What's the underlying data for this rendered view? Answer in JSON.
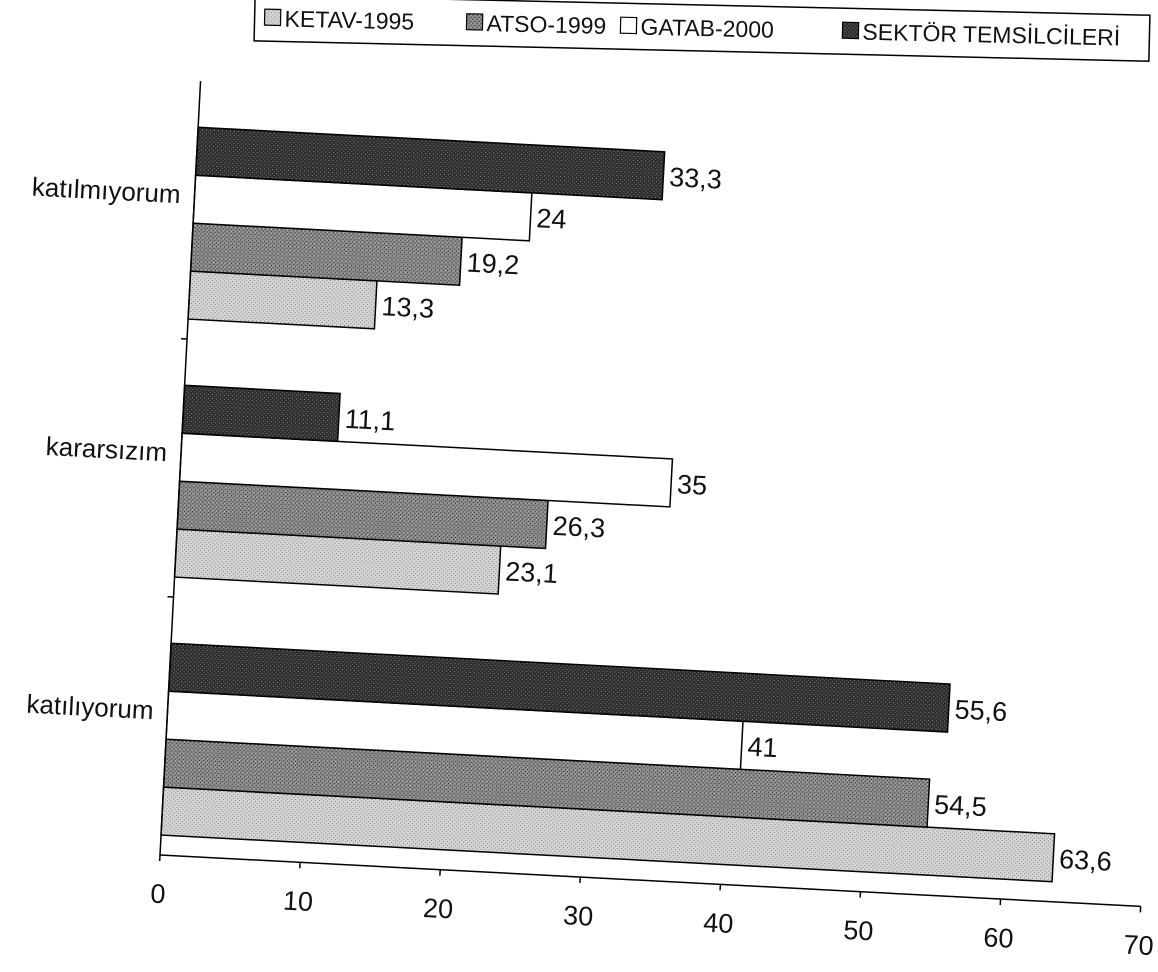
{
  "chart_data": {
    "type": "bar",
    "orientation": "horizontal",
    "title": "",
    "xlabel": "",
    "ylabel": "",
    "categories": [
      "katılmıyorum",
      "kararsızım",
      "katılıyorum"
    ],
    "series": [
      {
        "name": "KETAV-1995",
        "pattern": "light-hatch",
        "values": [
          13.3,
          23.1,
          63.6
        ],
        "labels": [
          "13,3",
          "23,1",
          "63,6"
        ]
      },
      {
        "name": "ATSO-1999",
        "pattern": "medium-hatch",
        "values": [
          19.2,
          26.3,
          54.5
        ],
        "labels": [
          "19,2",
          "26,3",
          "54,5"
        ]
      },
      {
        "name": "GATAB-2000",
        "pattern": "white",
        "values": [
          24,
          35,
          41
        ],
        "labels": [
          "24",
          "35",
          "41"
        ]
      },
      {
        "name": "SEKTÖR TEMSİLCİLERİ",
        "pattern": "dark-hatch",
        "values": [
          33.3,
          11.1,
          55.6
        ],
        "labels": [
          "33,3",
          "11,1",
          "55,6"
        ]
      }
    ],
    "xlim": [
      0,
      70
    ],
    "ticks": [
      "0",
      "10",
      "20",
      "30",
      "40",
      "50",
      "60",
      "70"
    ],
    "legend_position": "top",
    "grid": false
  }
}
